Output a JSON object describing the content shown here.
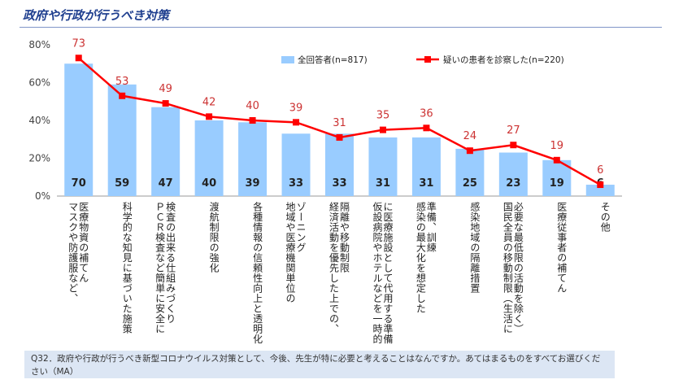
{
  "title": "政府や行政が行うべき対策",
  "footnote": "Q32．政府や行政が行うべき新型コロナウイルス対策として、今後、先生が特に必要と考えることはなんですか。あてはまるものをすべてお選びください（MA）",
  "colors": {
    "bar": "#99ccff",
    "line": "#ff0000",
    "line_label": "#cc3333",
    "title": "#1f3f8f",
    "footnote_bg": "#dce6f4"
  },
  "chart_data": {
    "type": "bar",
    "ylim": [
      0,
      80
    ],
    "yticks": [
      "0%",
      "20%",
      "40%",
      "60%",
      "80%"
    ],
    "grid": false,
    "legend_position": "top-right",
    "categories": [
      [
        "医療物資の補てん",
        "マスクや防護服など、"
      ],
      [
        "科学的な知見に基づいた施策"
      ],
      [
        "検査の出来る仕組みづくり",
        "ＰＣＲ検査など簡単に安全に"
      ],
      [
        "渡航制限の強化"
      ],
      [
        "各種情報の信頼性向上と透明化"
      ],
      [
        "ゾーニング",
        "地域や医療機関単位の"
      ],
      [
        "隔離や移動制限",
        "経済活動を優先した上での、"
      ],
      [
        "に医療施設として代用する準備",
        "仮設病院やホテルなどを一時的"
      ],
      [
        "準備、訓練",
        "感染の最大化を想定した"
      ],
      [
        "感染地域の隔離措置"
      ],
      [
        "必要な最低限の活動を除く）",
        "国民全員の移動制限（生活に"
      ],
      [
        "医療従事者の補てん"
      ],
      [
        "その他"
      ]
    ],
    "series": [
      {
        "name": "全回答者(n=817)",
        "type": "bar",
        "values": [
          70,
          59,
          47,
          40,
          39,
          33,
          33,
          31,
          31,
          25,
          23,
          19,
          6
        ]
      },
      {
        "name": "疑いの患者を診察した(n=220)",
        "type": "line",
        "values": [
          73,
          53,
          49,
          42,
          40,
          39,
          31,
          35,
          36,
          24,
          27,
          19,
          6
        ]
      }
    ]
  }
}
